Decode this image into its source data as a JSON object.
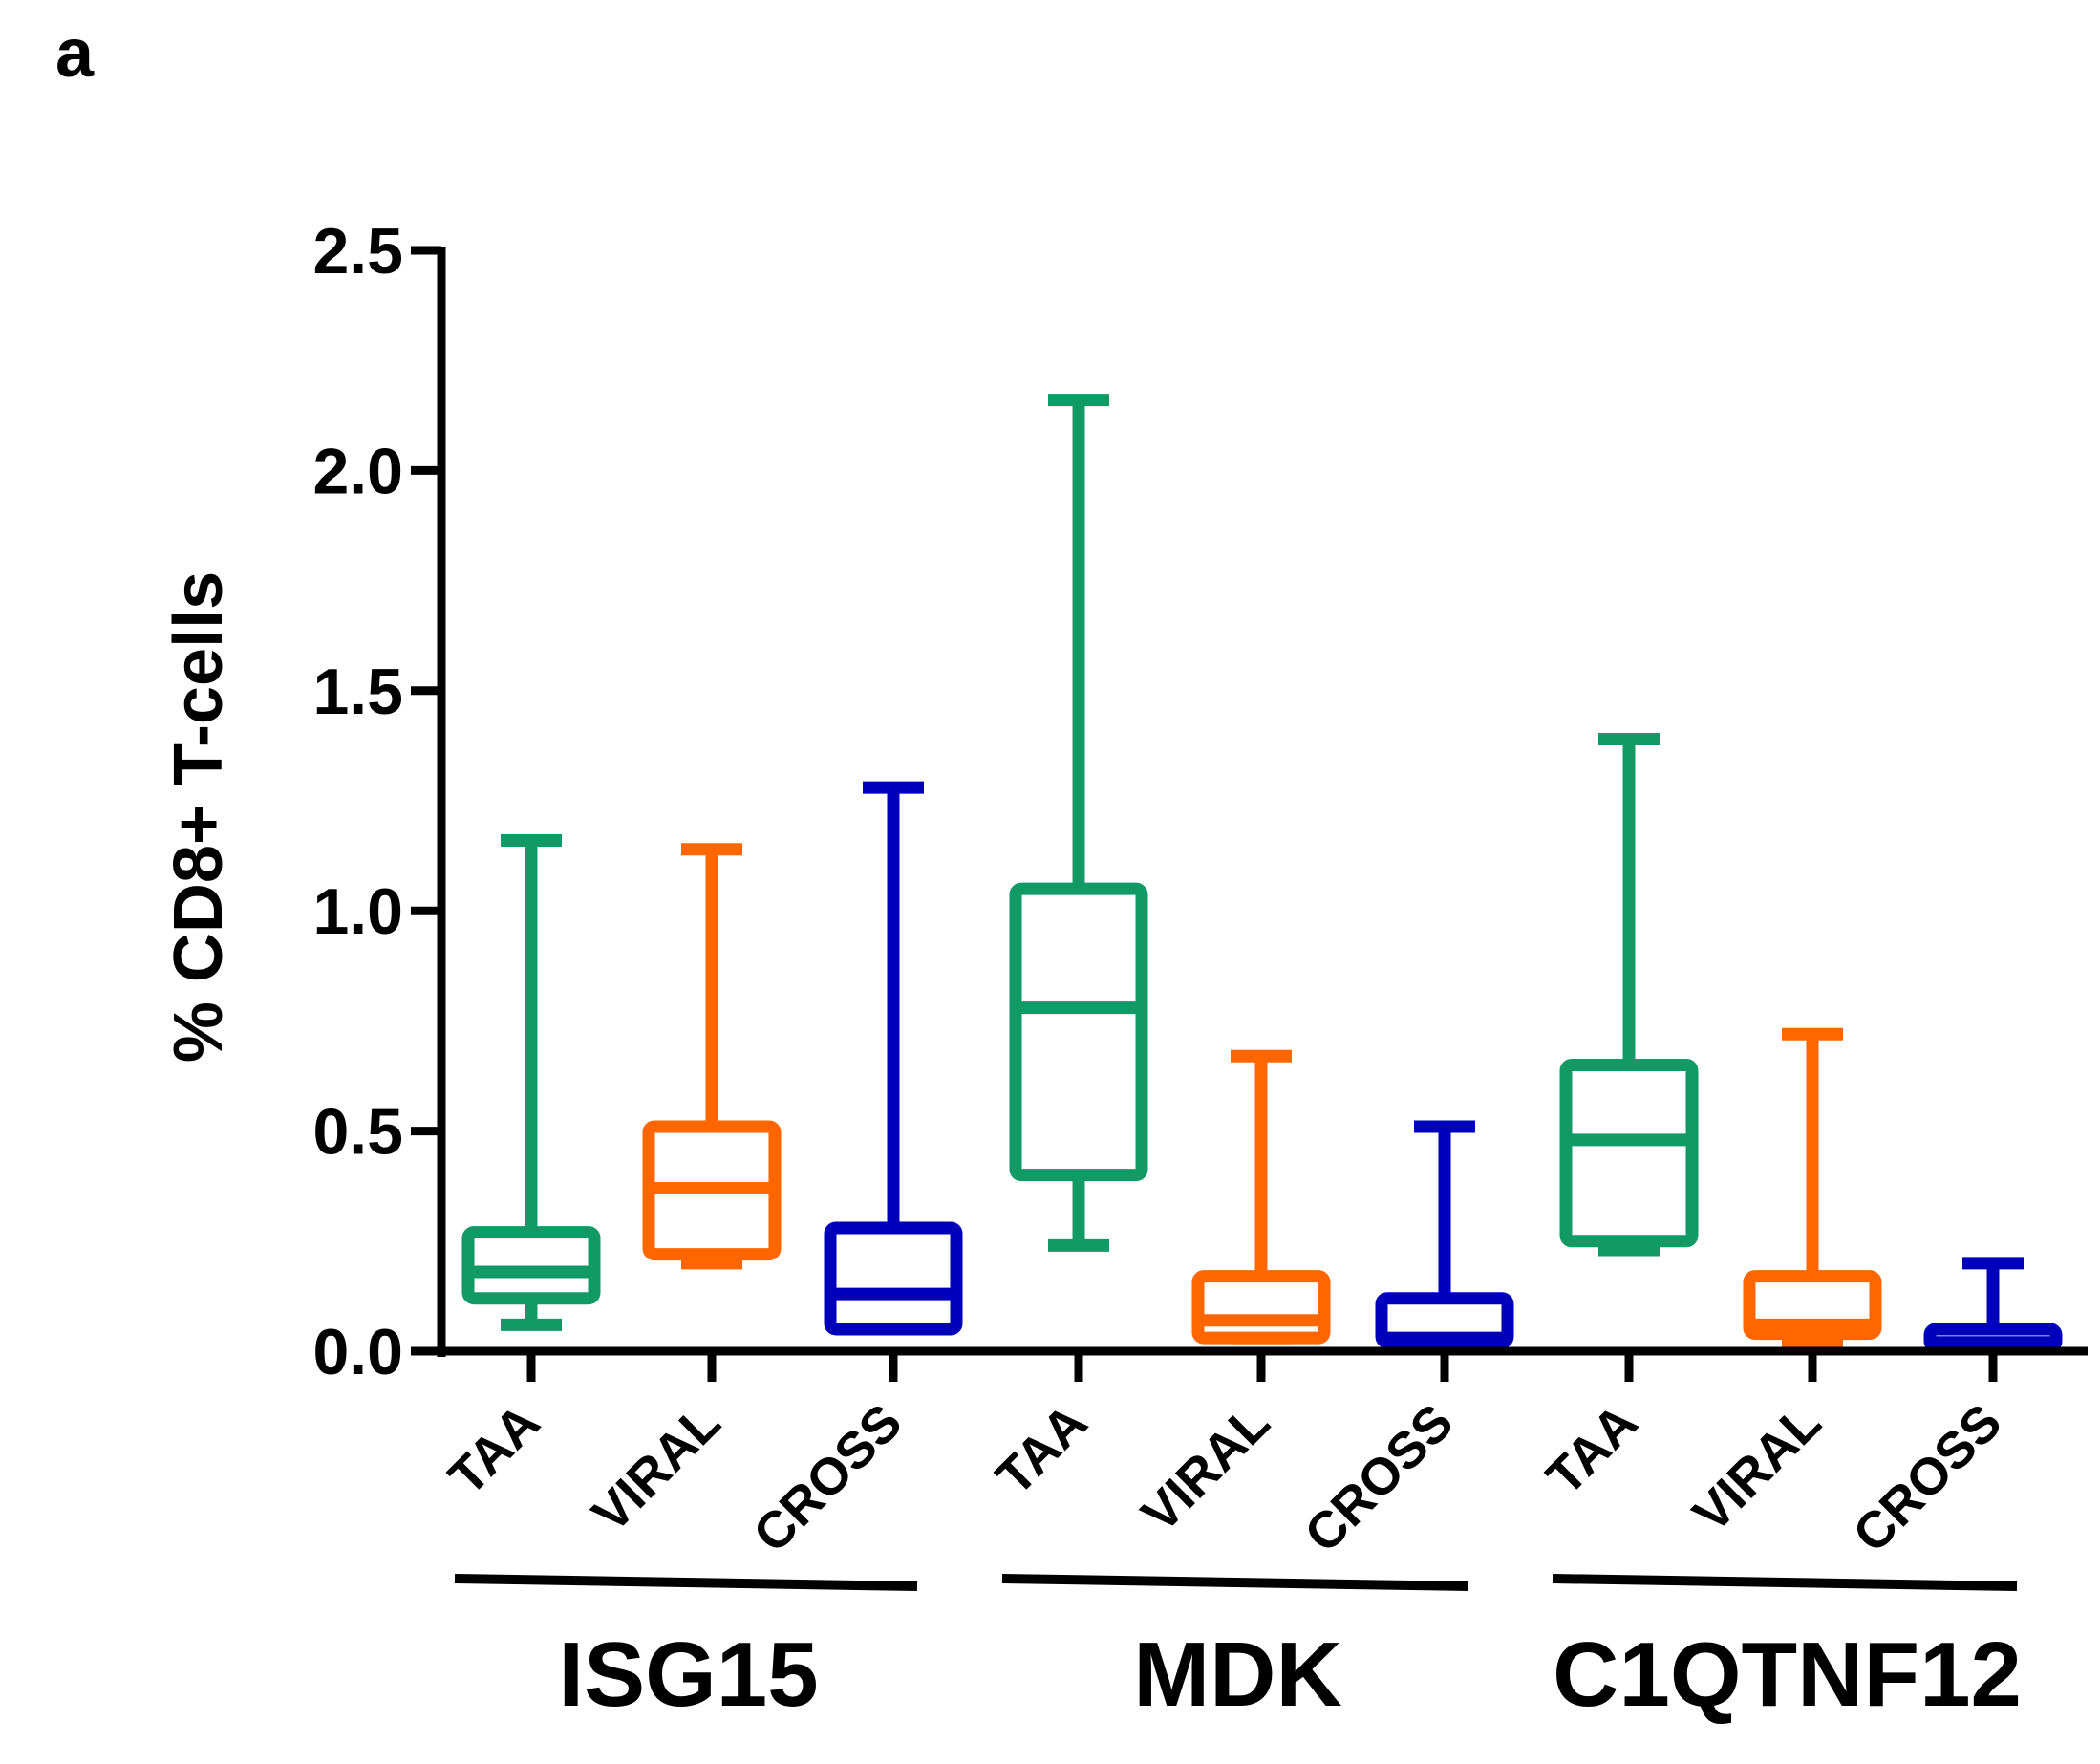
{
  "panel_label": "a",
  "chart_data": {
    "type": "box",
    "ylabel": "% CD8+ T-cells",
    "ylim": [
      0,
      2.5
    ],
    "yticks": [
      "0.0",
      "0.5",
      "1.0",
      "1.5",
      "2.0",
      "2.5"
    ],
    "ytick_values": [
      0,
      0.5,
      1.0,
      1.5,
      2.0,
      2.5
    ],
    "categories": [
      "TAA",
      "VIRAL",
      "CROSS"
    ],
    "colors": {
      "TAA": "#119966",
      "VIRAL": "#ff6600",
      "CROSS": "#0000bb"
    },
    "groups": [
      {
        "name": "ISG15",
        "boxes": [
          {
            "category": "TAA",
            "min": 0.06,
            "q1": 0.12,
            "median": 0.18,
            "q3": 0.27,
            "max": 1.16
          },
          {
            "category": "VIRAL",
            "min": 0.2,
            "q1": 0.22,
            "median": 0.37,
            "q3": 0.51,
            "max": 1.14
          },
          {
            "category": "CROSS",
            "min": 0.05,
            "q1": 0.05,
            "median": 0.13,
            "q3": 0.28,
            "max": 1.28
          }
        ]
      },
      {
        "name": "MDK",
        "boxes": [
          {
            "category": "TAA",
            "min": 0.24,
            "q1": 0.4,
            "median": 0.78,
            "q3": 1.05,
            "max": 2.16
          },
          {
            "category": "VIRAL",
            "min": 0.03,
            "q1": 0.03,
            "median": 0.07,
            "q3": 0.17,
            "max": 0.67
          },
          {
            "category": "CROSS",
            "min": 0.02,
            "q1": 0.02,
            "median": 0.03,
            "q3": 0.12,
            "max": 0.51
          }
        ]
      },
      {
        "name": "C1QTNF12",
        "boxes": [
          {
            "category": "TAA",
            "min": 0.23,
            "q1": 0.25,
            "median": 0.48,
            "q3": 0.65,
            "max": 1.39
          },
          {
            "category": "VIRAL",
            "min": 0.02,
            "q1": 0.04,
            "median": 0.06,
            "q3": 0.17,
            "max": 0.72
          },
          {
            "category": "CROSS",
            "min": 0.01,
            "q1": 0.01,
            "median": 0.02,
            "q3": 0.05,
            "max": 0.2
          }
        ]
      }
    ]
  }
}
